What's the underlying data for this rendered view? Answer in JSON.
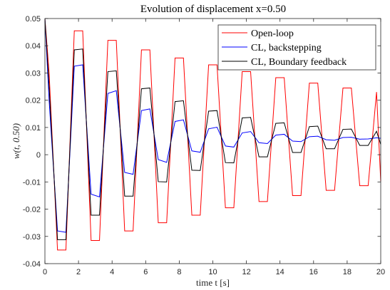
{
  "chart_data": {
    "type": "line",
    "title": "Evolution of displacement x=0.50",
    "xlabel": "time t [s]",
    "ylabel": "w(t, 0.50)",
    "xlim": [
      0,
      20
    ],
    "ylim": [
      -0.04,
      0.05
    ],
    "x_ticks": [
      "0",
      "2",
      "4",
      "6",
      "8",
      "10",
      "12",
      "14",
      "16",
      "18",
      "20"
    ],
    "y_ticks": [
      "-0.04",
      "-0.03",
      "-0.02",
      "-0.01",
      "0",
      "0.01",
      "0.02",
      "0.03",
      "0.04",
      "0.05"
    ],
    "grid": false,
    "legend_position": "top-right",
    "x": [
      0,
      0.25,
      0.75,
      1.25,
      1.75,
      2.25,
      2.75,
      3.25,
      3.75,
      4.25,
      4.75,
      5.25,
      5.75,
      6.25,
      6.75,
      7.25,
      7.75,
      8.25,
      8.75,
      9.25,
      9.75,
      10.25,
      10.75,
      11.25,
      11.75,
      12.25,
      12.75,
      13.25,
      13.75,
      14.25,
      14.75,
      15.25,
      15.75,
      16.25,
      16.75,
      17.25,
      17.75,
      18.25,
      18.75,
      19.25,
      19.75,
      20
    ],
    "series": [
      {
        "name": "Open-loop",
        "color": "#ff0000",
        "values": [
          0.05,
          0.03,
          -0.035,
          -0.035,
          0.0455,
          0.0455,
          -0.0315,
          -0.0315,
          0.042,
          0.042,
          -0.028,
          -0.028,
          0.0385,
          0.0385,
          -0.025,
          -0.025,
          0.0355,
          0.0355,
          -0.0222,
          -0.0222,
          0.033,
          0.033,
          -0.0195,
          -0.0195,
          0.0305,
          0.0305,
          -0.0172,
          -0.0172,
          0.0283,
          0.0283,
          -0.015,
          -0.015,
          0.0263,
          0.0263,
          -0.0131,
          -0.0131,
          0.0245,
          0.0245,
          -0.0114,
          -0.0114,
          0.023,
          -0.0098
        ]
      },
      {
        "name": "CL, backstepping",
        "color": "#0000ff",
        "values": [
          0.05,
          0.02,
          -0.028,
          -0.0285,
          0.0325,
          0.033,
          -0.0145,
          -0.0155,
          0.0225,
          0.0235,
          -0.0065,
          -0.0072,
          0.0162,
          0.0168,
          -0.0018,
          -0.0028,
          0.0122,
          0.0128,
          0.0014,
          0.0009,
          0.0095,
          0.0101,
          0.0032,
          0.0028,
          0.008,
          0.0085,
          0.0044,
          0.0041,
          0.0072,
          0.0075,
          0.005,
          0.0048,
          0.0066,
          0.0068,
          0.0055,
          0.0053,
          0.0063,
          0.0064,
          0.0057,
          0.0058,
          0.0062,
          0.006
        ]
      },
      {
        "name": "CL, Boundary feedback",
        "color": "#000000",
        "values": [
          0.05,
          0.025,
          -0.0312,
          -0.0312,
          0.0385,
          0.0388,
          -0.0222,
          -0.0222,
          0.0305,
          0.0308,
          -0.0152,
          -0.0152,
          0.0242,
          0.0245,
          -0.0099,
          -0.01,
          0.0195,
          0.0198,
          -0.0057,
          -0.0058,
          0.016,
          0.0162,
          -0.0029,
          -0.003,
          0.0135,
          0.0137,
          -0.0008,
          -0.0008,
          0.0115,
          0.0117,
          0.0008,
          0.0008,
          0.0103,
          0.0105,
          0.0022,
          0.0022,
          0.0093,
          0.0094,
          0.0034,
          0.0034,
          0.0086,
          0.0038
        ]
      }
    ]
  }
}
